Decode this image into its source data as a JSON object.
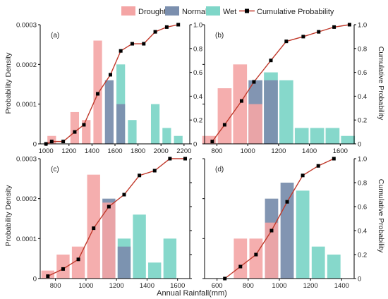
{
  "legend": {
    "items": [
      {
        "label": "Drought",
        "color": "#f4a5a5",
        "kind": "bar"
      },
      {
        "label": "Normal",
        "color": "#7b8fae",
        "kind": "bar"
      },
      {
        "label": "Wet",
        "color": "#7fd6c8",
        "kind": "bar"
      },
      {
        "label": "Cumulative Probability",
        "color": "#c0392b",
        "kind": "line-square"
      }
    ]
  },
  "shared": {
    "xlabel": "Annual Rainfall(mm)",
    "ylabel_left": "Probability Density",
    "ylabel_right": "Cumulative Probability"
  },
  "colors": {
    "drought": "#f4a5a5",
    "normal": "#7b8fae",
    "wet": "#7fd6c8",
    "cumulative_line": "#c0392b",
    "cumulative_marker": "#000000"
  },
  "chart_data": [
    {
      "panel": "(a)",
      "type": "bar",
      "xlim": [
        950,
        2250
      ],
      "ylim": [
        0,
        0.0003
      ],
      "y2lim": [
        0,
        1.0
      ],
      "xticks": [
        1000,
        1200,
        1400,
        1600,
        1800,
        2000,
        2200
      ],
      "xtick_labels": [
        "1000",
        "1200",
        "1400",
        "1600",
        "1800",
        "2000",
        "2200"
      ],
      "yticks": [
        0,
        0.0001,
        0.0002,
        0.0003
      ],
      "ytick_labels": [
        "0",
        "0.0001",
        "0.0002",
        "0.0003"
      ],
      "y2ticks": [
        0,
        0.2,
        0.4,
        0.6,
        0.8,
        1.0
      ],
      "y2tick_labels": [
        "0",
        "0.2",
        "0.4",
        "0.6",
        "0.8",
        "1.0"
      ],
      "bar_width": 75,
      "bars": [
        {
          "x": 1050,
          "class": "Drought",
          "value": 2e-05
        },
        {
          "x": 1250,
          "class": "Drought",
          "value": 8e-05
        },
        {
          "x": 1350,
          "class": "Drought",
          "value": 6e-05
        },
        {
          "x": 1450,
          "class": "Drought",
          "value": 0.00026
        },
        {
          "x": 1550,
          "class": "Normal",
          "value": 0.00016
        },
        {
          "x": 1650,
          "class": "Wet",
          "value": 0.0002
        },
        {
          "x": 1650,
          "class": "Normal",
          "value": 0.0001
        },
        {
          "x": 1750,
          "class": "Wet",
          "value": 6e-05
        },
        {
          "x": 1950,
          "class": "Wet",
          "value": 0.0001
        },
        {
          "x": 2050,
          "class": "Wet",
          "value": 4e-05
        },
        {
          "x": 2150,
          "class": "Wet",
          "value": 2e-05
        }
      ],
      "cumulative": {
        "x": [
          1000,
          1050,
          1150,
          1250,
          1330,
          1450,
          1560,
          1650,
          1750,
          1850,
          1950,
          2050,
          2150
        ],
        "y": [
          0.0,
          0.02,
          0.02,
          0.1,
          0.16,
          0.42,
          0.58,
          0.78,
          0.84,
          0.84,
          0.94,
          0.98,
          1.0
        ]
      }
    },
    {
      "panel": "(b)",
      "type": "bar",
      "xlim": [
        720,
        1690
      ],
      "ylim": [
        0,
        0.0003
      ],
      "y2lim": [
        0,
        1.0
      ],
      "xticks": [
        800,
        1000,
        1200,
        1400,
        1600
      ],
      "xtick_labels": [
        "800",
        "1000",
        "1200",
        "1400",
        "1600"
      ],
      "yticks": [
        0,
        0.0001,
        0.0002,
        0.0003
      ],
      "ytick_labels": [],
      "y2ticks": [
        0,
        0.2,
        0.4,
        0.6,
        0.8,
        1.0
      ],
      "y2tick_labels": [
        "0",
        "0.2",
        "0.4",
        "0.6",
        "0.8",
        "1.0"
      ],
      "bar_width": 90,
      "bars": [
        {
          "x": 750,
          "class": "Drought",
          "value": 2e-05
        },
        {
          "x": 850,
          "class": "Drought",
          "value": 0.00014
        },
        {
          "x": 950,
          "class": "Drought",
          "value": 0.0002
        },
        {
          "x": 1050,
          "class": "Normal",
          "value": 0.00016
        },
        {
          "x": 1050,
          "class": "Drought",
          "value": 0.0001
        },
        {
          "x": 1150,
          "class": "Wet",
          "value": 0.00018
        },
        {
          "x": 1150,
          "class": "Normal",
          "value": 0.00016
        },
        {
          "x": 1250,
          "class": "Wet",
          "value": 0.00016
        },
        {
          "x": 1350,
          "class": "Wet",
          "value": 4e-05
        },
        {
          "x": 1450,
          "class": "Wet",
          "value": 4e-05
        },
        {
          "x": 1550,
          "class": "Wet",
          "value": 4e-05
        },
        {
          "x": 1650,
          "class": "Wet",
          "value": 2e-05
        }
      ],
      "cumulative": {
        "x": [
          770,
          850,
          960,
          1040,
          1150,
          1250,
          1360,
          1460,
          1560,
          1660
        ],
        "y": [
          0.02,
          0.16,
          0.36,
          0.52,
          0.7,
          0.86,
          0.9,
          0.94,
          0.98,
          1.0
        ]
      }
    },
    {
      "panel": "(c)",
      "type": "bar",
      "xlim": [
        700,
        1680
      ],
      "ylim": [
        0,
        0.0003
      ],
      "y2lim": [
        0,
        1.0
      ],
      "xticks": [
        800,
        1000,
        1200,
        1400,
        1600
      ],
      "xtick_labels": [
        "800",
        "1000",
        "1200",
        "1400",
        "1600"
      ],
      "yticks": [
        0,
        0.0001,
        0.0002,
        0.0003
      ],
      "ytick_labels": [
        "0",
        "0.0001",
        "0.0002",
        "0.0003"
      ],
      "y2ticks": [
        0,
        0.2,
        0.4,
        0.6,
        0.8,
        1.0
      ],
      "y2tick_labels": [],
      "bar_width": 85,
      "bars": [
        {
          "x": 750,
          "class": "Drought",
          "value": 2e-05
        },
        {
          "x": 850,
          "class": "Drought",
          "value": 6e-05
        },
        {
          "x": 950,
          "class": "Drought",
          "value": 8e-05
        },
        {
          "x": 1050,
          "class": "Drought",
          "value": 0.00026
        },
        {
          "x": 1150,
          "class": "Normal",
          "value": 0.0002
        },
        {
          "x": 1150,
          "class": "Drought",
          "value": 0.00019
        },
        {
          "x": 1250,
          "class": "Wet",
          "value": 0.0001
        },
        {
          "x": 1250,
          "class": "Normal",
          "value": 8e-05
        },
        {
          "x": 1350,
          "class": "Wet",
          "value": 0.00016
        },
        {
          "x": 1450,
          "class": "Wet",
          "value": 4e-05
        },
        {
          "x": 1550,
          "class": "Wet",
          "value": 0.0001
        }
      ],
      "cumulative": {
        "x": [
          750,
          850,
          950,
          1050,
          1150,
          1250,
          1350,
          1450,
          1550,
          1650
        ],
        "y": [
          0.02,
          0.08,
          0.16,
          0.42,
          0.6,
          0.7,
          0.86,
          0.9,
          1.0,
          1.0
        ]
      }
    },
    {
      "panel": "(d)",
      "type": "bar",
      "xlim": [
        520,
        1480
      ],
      "ylim": [
        0,
        0.0003
      ],
      "y2lim": [
        0,
        1.0
      ],
      "xticks": [
        600,
        800,
        1000,
        1200,
        1400
      ],
      "xtick_labels": [
        "600",
        "800",
        "1000",
        "1200",
        "1400"
      ],
      "yticks": [
        0,
        0.0001,
        0.0002,
        0.0003
      ],
      "ytick_labels": [],
      "y2ticks": [
        0,
        0.2,
        0.4,
        0.6,
        0.8,
        1.0
      ],
      "y2tick_labels": [
        "0",
        "0.2",
        "0.4",
        "0.6",
        "0.8",
        "1.0"
      ],
      "bar_width": 85,
      "bars": [
        {
          "x": 750,
          "class": "Drought",
          "value": 0.0001
        },
        {
          "x": 850,
          "class": "Drought",
          "value": 0.0001
        },
        {
          "x": 950,
          "class": "Normal",
          "value": 0.0002
        },
        {
          "x": 950,
          "class": "Drought",
          "value": 0.00014
        },
        {
          "x": 1050,
          "class": "Normal",
          "value": 0.00024
        },
        {
          "x": 1150,
          "class": "Wet",
          "value": 0.00022
        },
        {
          "x": 1250,
          "class": "Wet",
          "value": 8e-05
        },
        {
          "x": 1350,
          "class": "Wet",
          "value": 6e-05
        }
      ],
      "cumulative": {
        "x": [
          650,
          750,
          850,
          950,
          1050,
          1150,
          1250,
          1350
        ],
        "y": [
          0.0,
          0.1,
          0.2,
          0.4,
          0.64,
          0.86,
          0.94,
          1.0
        ]
      }
    }
  ]
}
